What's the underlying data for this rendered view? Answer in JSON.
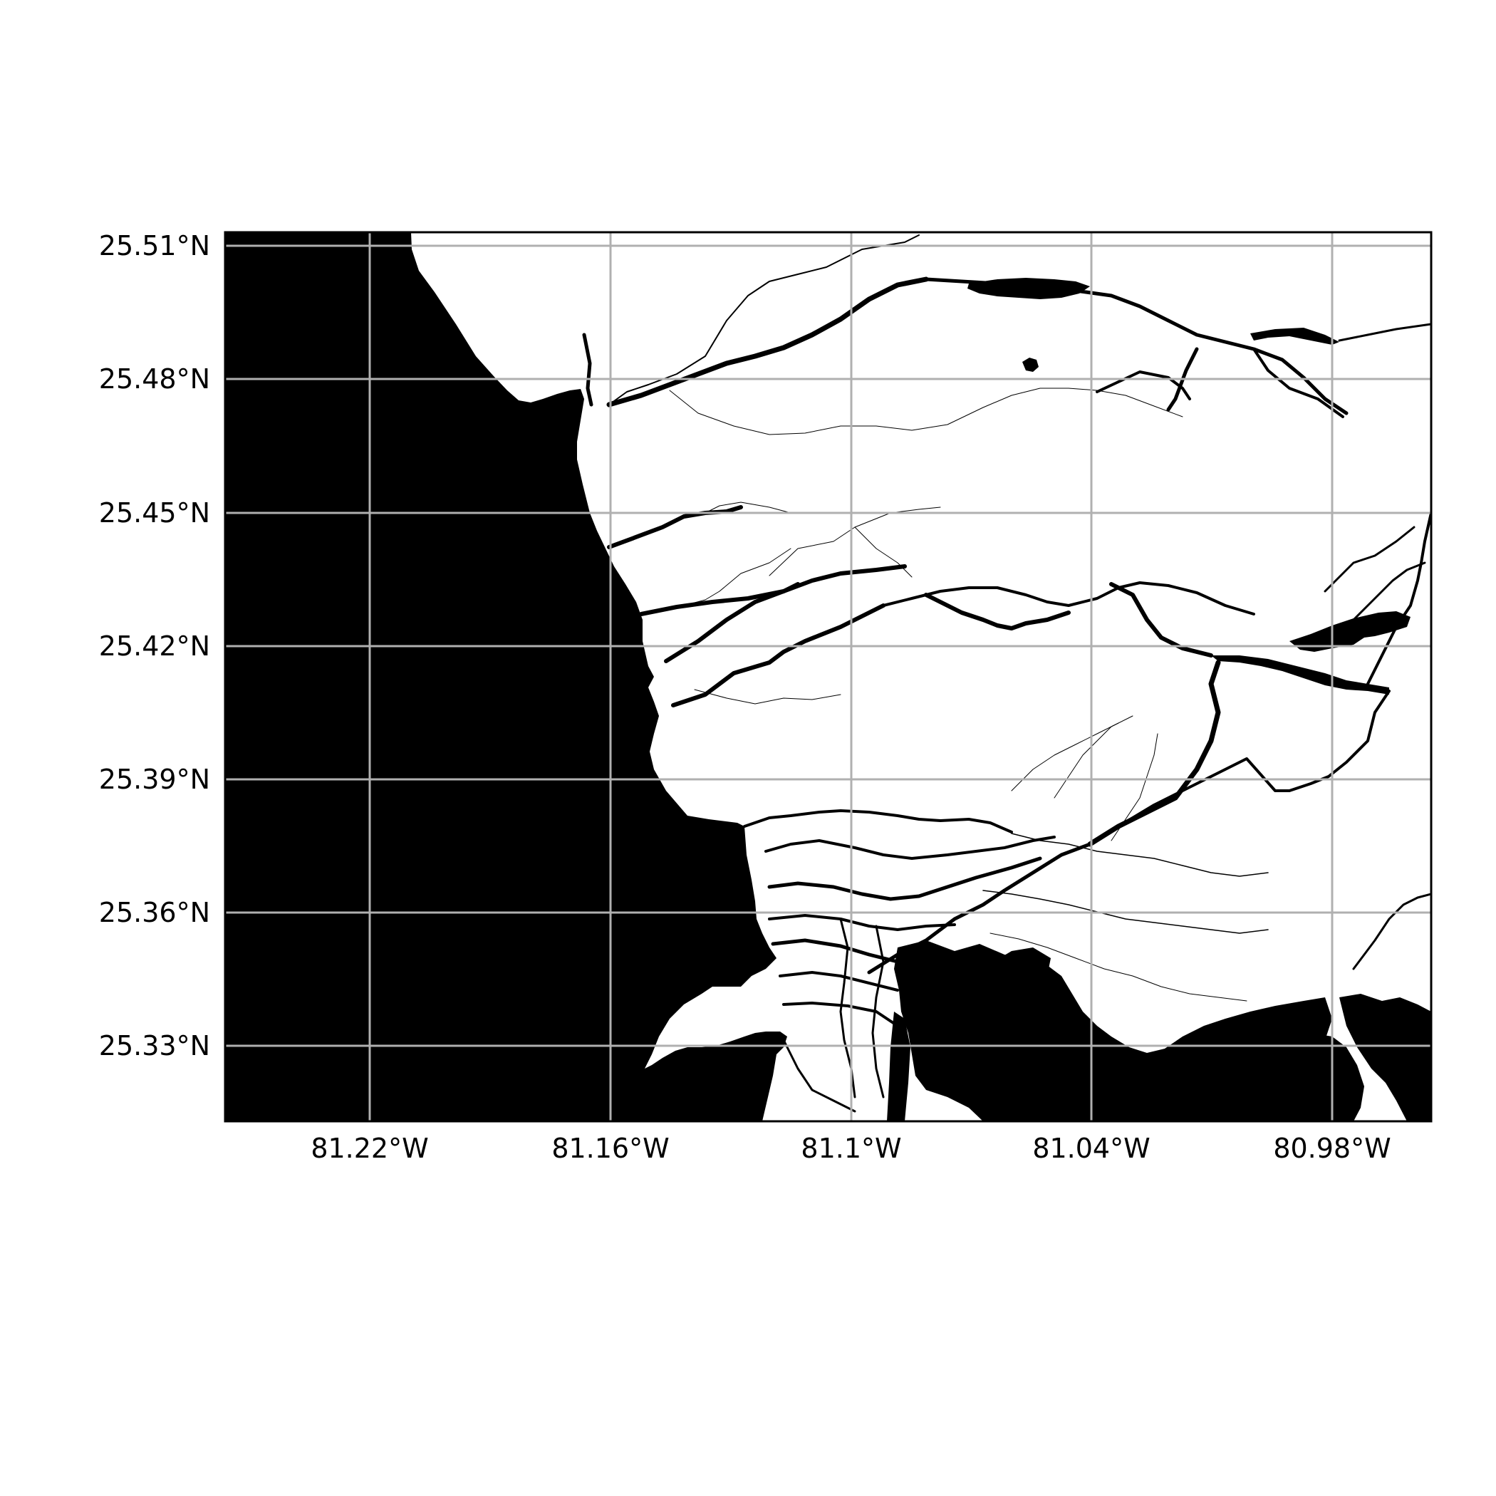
{
  "map": {
    "lon_labels": [
      "81.22°W",
      "81.16°W",
      "81.1°W",
      "81.04°W",
      "80.98°W"
    ],
    "lat_labels": [
      "25.51°N",
      "25.48°N",
      "25.45°N",
      "25.42°N",
      "25.39°N",
      "25.36°N",
      "25.33°N"
    ],
    "lon_values": [
      -81.22,
      -81.16,
      -81.1,
      -81.04,
      -80.98
    ],
    "lat_values": [
      25.51,
      25.48,
      25.45,
      25.42,
      25.39,
      25.36,
      25.33
    ],
    "extent": {
      "lon_min": -81.256,
      "lon_max": -80.956,
      "lat_min": 25.313,
      "lat_max": 25.513
    },
    "grid": true,
    "colors": {
      "water": "#000000",
      "land": "#ffffff",
      "grid": "#b0b0b0",
      "frame": "#000000"
    }
  }
}
